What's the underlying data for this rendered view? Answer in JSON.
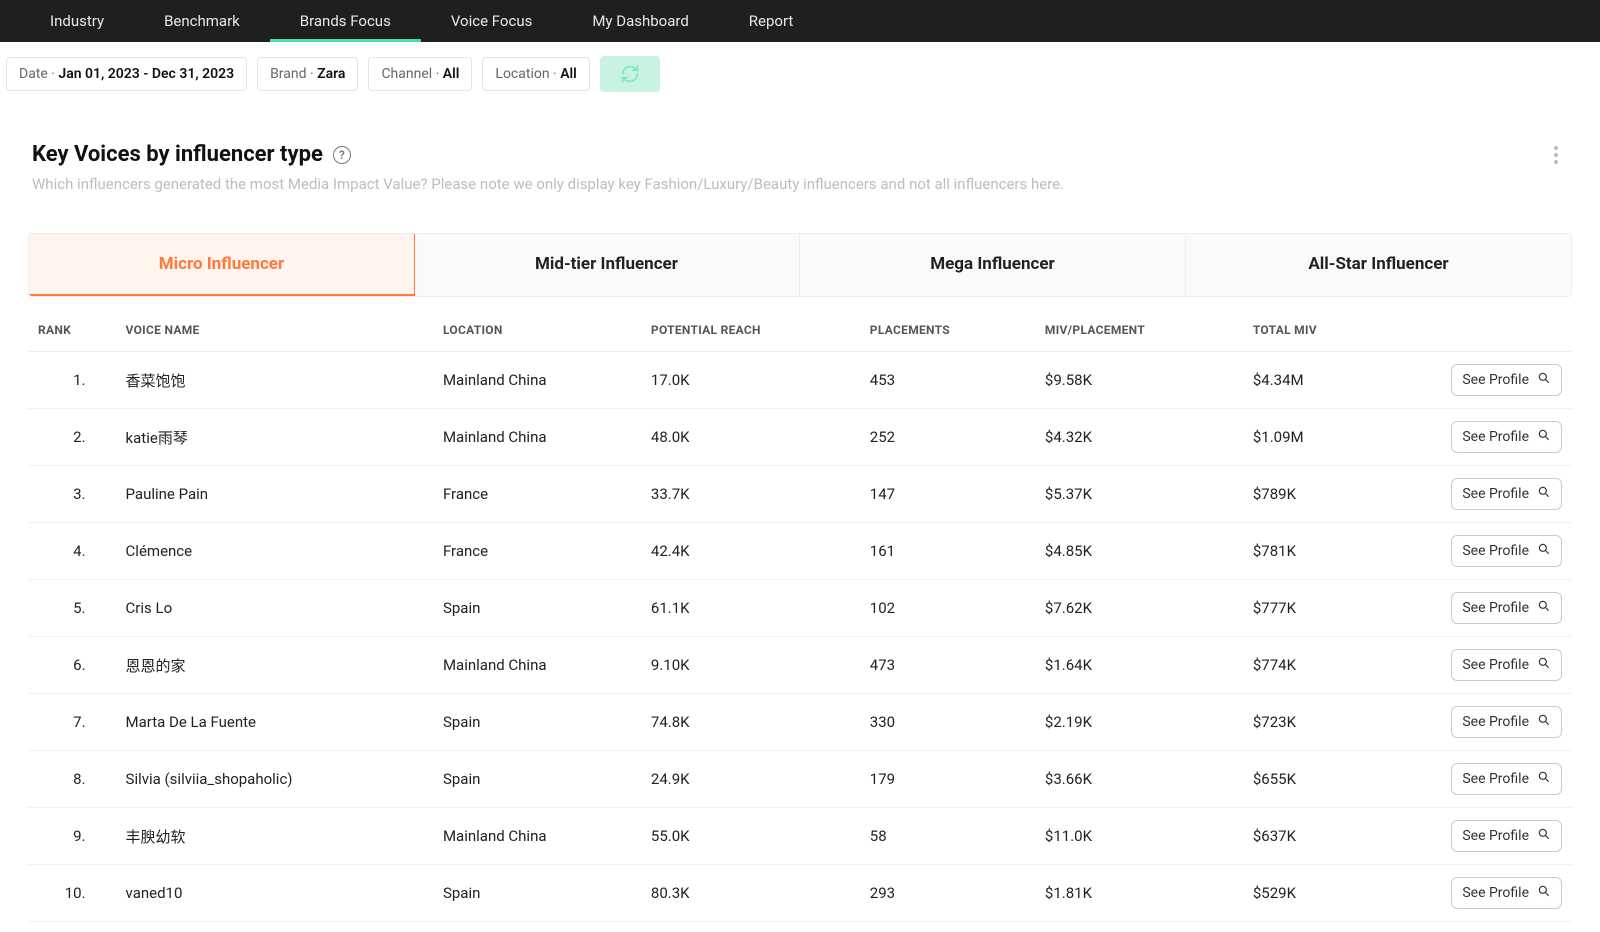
{
  "colors": {
    "nav_bg": "#1f1f1f",
    "nav_active_underline": "#3fe0b0",
    "tab_active_text": "#ff7a3d",
    "tab_active_bg": "#fff4ee",
    "border": "#eeeeee",
    "subtitle": "#bdbdbd"
  },
  "nav": {
    "items": [
      {
        "label": "Industry"
      },
      {
        "label": "Benchmark"
      },
      {
        "label": "Brands Focus"
      },
      {
        "label": "Voice Focus"
      },
      {
        "label": "My Dashboard"
      },
      {
        "label": "Report"
      }
    ],
    "active_index": 2
  },
  "filters": {
    "date": {
      "label": "Date · ",
      "value": "Jan 01, 2023 - Dec 31, 2023"
    },
    "brand": {
      "label": "Brand · ",
      "value": "Zara"
    },
    "channel": {
      "label": "Channel · ",
      "value": "All"
    },
    "location": {
      "label": "Location · ",
      "value": "All"
    }
  },
  "panel": {
    "title": "Key Voices by influencer type",
    "subtitle": "Which influencers generated the most Media Impact Value? Please note we only display key Fashion/Luxury/Beauty influencers and not all influencers here."
  },
  "tabs": {
    "items": [
      {
        "label": "Micro Influencer"
      },
      {
        "label": "Mid-tier Influencer"
      },
      {
        "label": "Mega Influencer"
      },
      {
        "label": "All-Star Influencer"
      }
    ],
    "active_index": 0
  },
  "table": {
    "columns": {
      "rank": "RANK",
      "voice": "VOICE NAME",
      "location": "LOCATION",
      "reach": "POTENTIAL REACH",
      "placements": "PLACEMENTS",
      "mivpp": "MIV/PLACEMENT",
      "total": "TOTAL MIV"
    },
    "action_label": "See Profile",
    "rows": [
      {
        "rank": "1.",
        "voice": "香菜饱饱",
        "location": "Mainland China",
        "reach": "17.0K",
        "placements": "453",
        "mivpp": "$9.58K",
        "total": "$4.34M"
      },
      {
        "rank": "2.",
        "voice": "katie雨琴",
        "location": "Mainland China",
        "reach": "48.0K",
        "placements": "252",
        "mivpp": "$4.32K",
        "total": "$1.09M"
      },
      {
        "rank": "3.",
        "voice": "Pauline Pain",
        "location": "France",
        "reach": "33.7K",
        "placements": "147",
        "mivpp": "$5.37K",
        "total": "$789K"
      },
      {
        "rank": "4.",
        "voice": "Clémence",
        "location": "France",
        "reach": "42.4K",
        "placements": "161",
        "mivpp": "$4.85K",
        "total": "$781K"
      },
      {
        "rank": "5.",
        "voice": "Cris Lo",
        "location": "Spain",
        "reach": "61.1K",
        "placements": "102",
        "mivpp": "$7.62K",
        "total": "$777K"
      },
      {
        "rank": "6.",
        "voice": "恩恩的家",
        "location": "Mainland China",
        "reach": "9.10K",
        "placements": "473",
        "mivpp": "$1.64K",
        "total": "$774K"
      },
      {
        "rank": "7.",
        "voice": "Marta De La Fuente",
        "location": "Spain",
        "reach": "74.8K",
        "placements": "330",
        "mivpp": "$2.19K",
        "total": "$723K"
      },
      {
        "rank": "8.",
        "voice": "Silvia (silviia_shopaholic)",
        "location": "Spain",
        "reach": "24.9K",
        "placements": "179",
        "mivpp": "$3.66K",
        "total": "$655K"
      },
      {
        "rank": "9.",
        "voice": "丰腴幼软",
        "location": "Mainland China",
        "reach": "55.0K",
        "placements": "58",
        "mivpp": "$11.0K",
        "total": "$637K"
      },
      {
        "rank": "10.",
        "voice": "vaned10",
        "location": "Spain",
        "reach": "80.3K",
        "placements": "293",
        "mivpp": "$1.81K",
        "total": "$529K"
      }
    ]
  }
}
